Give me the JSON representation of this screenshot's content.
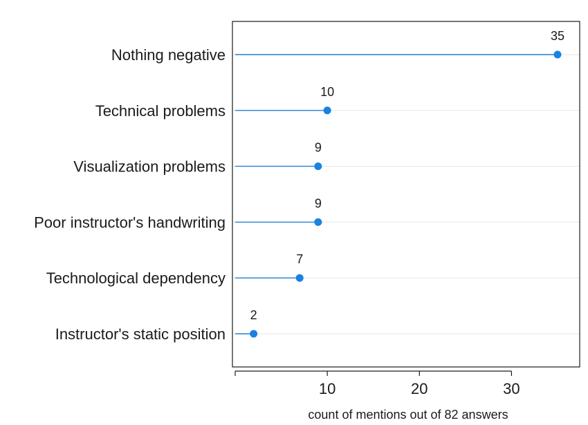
{
  "chart_data": {
    "type": "lollipop",
    "categories": [
      "Nothing negative",
      "Technical problems",
      "Visualization problems",
      "Poor instructor's handwriting",
      "Technological dependency",
      "Instructor's static position"
    ],
    "values": [
      35,
      10,
      9,
      9,
      7,
      2
    ],
    "data_labels": [
      "35",
      "10",
      "9",
      "9",
      "7",
      "2"
    ],
    "xlabel": "count of mentions out of 82 answers",
    "ylabel": "",
    "title": "",
    "xlim": [
      0,
      37
    ],
    "xticks": [
      10,
      20,
      30
    ],
    "grid": "horizontal",
    "colors": {
      "stem": "#1f7fd6",
      "dot": "#1a82e0",
      "grid": "#e6e6e6",
      "frame": "#1a1a1a"
    }
  }
}
